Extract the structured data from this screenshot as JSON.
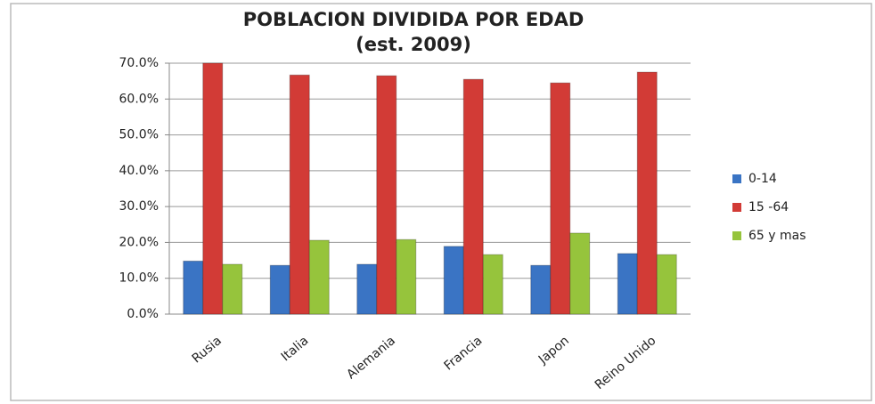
{
  "chart_data": {
    "type": "bar",
    "title": "POBLACION DIVIDIDA POR EDAD",
    "subtitle": "(est. 2009)",
    "categories": [
      "Rusia",
      "Italia",
      "Alemania",
      "Francia",
      "Japon",
      "Reino Unido"
    ],
    "series": [
      {
        "name": "0-14",
        "color": "#3a74c4",
        "values": [
          14.8,
          13.6,
          13.9,
          18.9,
          13.6,
          16.9
        ]
      },
      {
        "name": "15 -64",
        "color": "#d23b36",
        "values": [
          70.0,
          66.7,
          66.5,
          65.5,
          64.5,
          67.5
        ]
      },
      {
        "name": "65 y mas",
        "color": "#96c43c",
        "values": [
          13.9,
          20.6,
          20.8,
          16.6,
          22.6,
          16.6
        ]
      }
    ],
    "ylim": [
      0,
      70
    ],
    "yticks": [
      {
        "value": 0,
        "label": "0.0%"
      },
      {
        "value": 10,
        "label": "10.0%"
      },
      {
        "value": 20,
        "label": "20.0%"
      },
      {
        "value": 30,
        "label": "30.0%"
      },
      {
        "value": 40,
        "label": "40.0%"
      },
      {
        "value": 50,
        "label": "50.0%"
      },
      {
        "value": 60,
        "label": "60.0%"
      },
      {
        "value": 70,
        "label": "70.0%"
      }
    ],
    "grid": true,
    "legend": "right"
  }
}
